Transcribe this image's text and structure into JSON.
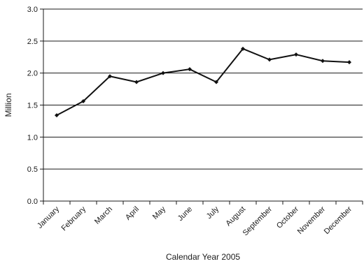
{
  "chart_data": {
    "type": "line",
    "title": "",
    "xlabel": "Calendar Year 2005",
    "ylabel": "Million",
    "ylim": [
      0,
      3.0
    ],
    "yticks": [
      "0.0",
      "0.5",
      "1.0",
      "1.5",
      "2.0",
      "2.5",
      "3.0"
    ],
    "grid": "horizontal",
    "categories": [
      "January",
      "February",
      "March",
      "April",
      "May",
      "June",
      "July",
      "August",
      "September",
      "October",
      "November",
      "December"
    ],
    "series": [
      {
        "values": [
          1.34,
          1.56,
          1.95,
          1.86,
          2.0,
          2.06,
          1.86,
          2.38,
          2.21,
          2.29,
          2.19,
          2.17
        ],
        "color": "#111111",
        "marker": "diamond"
      }
    ]
  }
}
